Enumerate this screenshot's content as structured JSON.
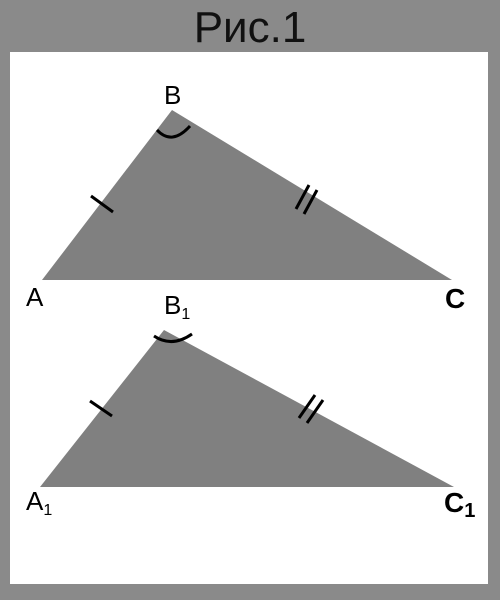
{
  "title": "Рис.1",
  "colors": {
    "frame": "#8a8a8a",
    "panel": "#ffffff",
    "triangle_fill": "#808080",
    "marks": "#000000"
  },
  "triangles": [
    {
      "vertices": {
        "a": {
          "letter": "A",
          "subscript": ""
        },
        "b": {
          "letter": "B",
          "subscript": ""
        },
        "c": {
          "letter": "C",
          "subscript": ""
        }
      }
    },
    {
      "vertices": {
        "a": {
          "letter": "A",
          "subscript": "1"
        },
        "b": {
          "letter": "B",
          "subscript": "1"
        },
        "c": {
          "letter": "C",
          "subscript": "1"
        }
      }
    }
  ]
}
